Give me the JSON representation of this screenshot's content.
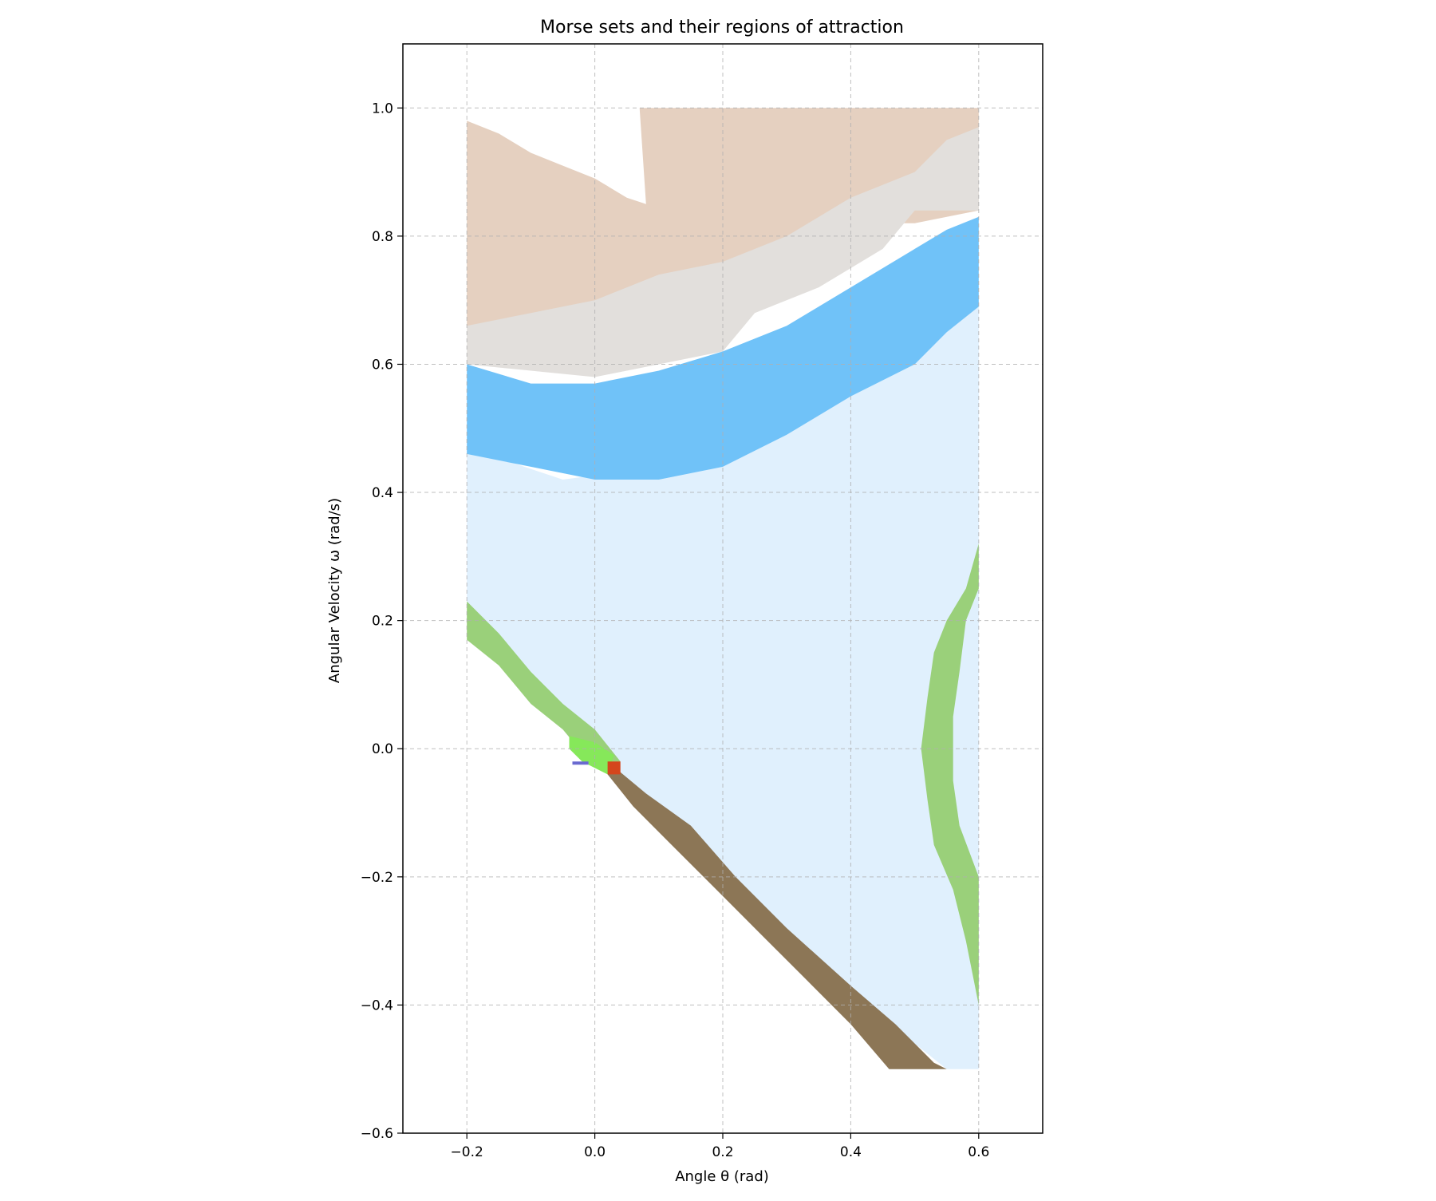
{
  "chart_data": {
    "type": "heatmap",
    "title": "Morse sets and their regions of attraction",
    "xlabel": "Angle θ (rad)",
    "ylabel": "Angular Velocity ω (rad/s)",
    "xlim": [
      -0.3,
      0.7
    ],
    "ylim": [
      -0.6,
      1.1
    ],
    "xticks": [
      -0.2,
      0.0,
      0.2,
      0.4,
      0.6
    ],
    "yticks": [
      -0.6,
      -0.4,
      -0.2,
      0.0,
      0.2,
      0.4,
      0.6,
      0.8,
      1.0
    ],
    "xtick_labels": [
      "−0.2",
      "0.0",
      "0.2",
      "0.4",
      "0.6"
    ],
    "ytick_labels": [
      "−0.6",
      "−0.4",
      "−0.2",
      "0.0",
      "0.2",
      "0.4",
      "0.6",
      "0.8",
      "1.0"
    ],
    "grid": true,
    "legend": "none",
    "regions": [
      {
        "color": "#e0f0fd",
        "polygon": [
          [
            -0.2,
            0.47
          ],
          [
            -0.05,
            0.42
          ],
          [
            0.1,
            0.44
          ],
          [
            0.35,
            0.52
          ],
          [
            0.6,
            0.7
          ],
          [
            0.6,
            -0.5
          ],
          [
            0.55,
            -0.5
          ],
          [
            0.3,
            -0.3
          ],
          [
            0.1,
            -0.12
          ],
          [
            -0.2,
            0.2
          ]
        ]
      },
      {
        "color": "#e5d0c0",
        "polygon": [
          [
            -0.2,
            0.98
          ],
          [
            -0.15,
            0.96
          ],
          [
            -0.1,
            0.93
          ],
          [
            -0.05,
            0.91
          ],
          [
            0.0,
            0.89
          ],
          [
            0.05,
            0.86
          ],
          [
            0.08,
            0.85
          ],
          [
            0.07,
            1.0
          ],
          [
            0.6,
            1.0
          ],
          [
            0.6,
            0.84
          ],
          [
            0.5,
            0.82
          ],
          [
            0.4,
            0.82
          ],
          [
            0.35,
            0.8
          ],
          [
            0.3,
            0.76
          ],
          [
            0.2,
            0.7
          ],
          [
            0.1,
            0.68
          ],
          [
            0.0,
            0.66
          ],
          [
            -0.1,
            0.66
          ],
          [
            -0.2,
            0.66
          ]
        ]
      },
      {
        "color": "#e2dfdc",
        "polygon": [
          [
            -0.2,
            0.66
          ],
          [
            -0.1,
            0.68
          ],
          [
            0.0,
            0.7
          ],
          [
            0.1,
            0.74
          ],
          [
            0.2,
            0.76
          ],
          [
            0.3,
            0.8
          ],
          [
            0.4,
            0.86
          ],
          [
            0.5,
            0.9
          ],
          [
            0.55,
            0.95
          ],
          [
            0.6,
            0.97
          ],
          [
            0.6,
            0.84
          ],
          [
            0.5,
            0.84
          ],
          [
            0.45,
            0.78
          ],
          [
            0.35,
            0.72
          ],
          [
            0.25,
            0.68
          ],
          [
            0.2,
            0.62
          ],
          [
            0.1,
            0.6
          ],
          [
            0.0,
            0.58
          ],
          [
            -0.2,
            0.6
          ]
        ]
      },
      {
        "color": "#70c2f8",
        "polygon": [
          [
            -0.2,
            0.6
          ],
          [
            -0.1,
            0.57
          ],
          [
            0.0,
            0.57
          ],
          [
            0.1,
            0.59
          ],
          [
            0.2,
            0.62
          ],
          [
            0.3,
            0.66
          ],
          [
            0.4,
            0.72
          ],
          [
            0.5,
            0.78
          ],
          [
            0.55,
            0.81
          ],
          [
            0.6,
            0.83
          ],
          [
            0.6,
            0.69
          ],
          [
            0.55,
            0.65
          ],
          [
            0.5,
            0.6
          ],
          [
            0.4,
            0.55
          ],
          [
            0.3,
            0.49
          ],
          [
            0.2,
            0.44
          ],
          [
            0.1,
            0.42
          ],
          [
            0.0,
            0.42
          ],
          [
            -0.1,
            0.44
          ],
          [
            -0.2,
            0.46
          ]
        ]
      },
      {
        "color": "#9ad07a",
        "polygon": [
          [
            -0.2,
            0.23
          ],
          [
            -0.15,
            0.18
          ],
          [
            -0.1,
            0.12
          ],
          [
            -0.05,
            0.07
          ],
          [
            0.0,
            0.03
          ],
          [
            0.04,
            -0.02
          ],
          [
            0.0,
            -0.03
          ],
          [
            -0.05,
            0.03
          ],
          [
            -0.1,
            0.07
          ],
          [
            -0.15,
            0.13
          ],
          [
            -0.2,
            0.17
          ]
        ]
      },
      {
        "color": "#9ad07a",
        "polygon": [
          [
            0.6,
            0.32
          ],
          [
            0.58,
            0.25
          ],
          [
            0.55,
            0.2
          ],
          [
            0.53,
            0.15
          ],
          [
            0.52,
            0.08
          ],
          [
            0.51,
            0.0
          ],
          [
            0.52,
            -0.08
          ],
          [
            0.53,
            -0.15
          ],
          [
            0.56,
            -0.22
          ],
          [
            0.58,
            -0.3
          ],
          [
            0.6,
            -0.4
          ],
          [
            0.6,
            -0.2
          ],
          [
            0.57,
            -0.12
          ],
          [
            0.56,
            -0.05
          ],
          [
            0.56,
            0.05
          ],
          [
            0.57,
            0.12
          ],
          [
            0.58,
            0.2
          ],
          [
            0.6,
            0.25
          ]
        ]
      },
      {
        "color": "#8c7656",
        "polygon": [
          [
            0.02,
            -0.02
          ],
          [
            0.08,
            -0.07
          ],
          [
            0.15,
            -0.12
          ],
          [
            0.22,
            -0.2
          ],
          [
            0.3,
            -0.28
          ],
          [
            0.4,
            -0.37
          ],
          [
            0.47,
            -0.43
          ],
          [
            0.53,
            -0.49
          ],
          [
            0.55,
            -0.5
          ],
          [
            0.46,
            -0.5
          ],
          [
            0.4,
            -0.43
          ],
          [
            0.33,
            -0.36
          ],
          [
            0.26,
            -0.29
          ],
          [
            0.19,
            -0.22
          ],
          [
            0.12,
            -0.15
          ],
          [
            0.06,
            -0.09
          ],
          [
            0.02,
            -0.04
          ]
        ]
      },
      {
        "color": "#86e85a",
        "polygon": [
          [
            -0.04,
            0.02
          ],
          [
            0.0,
            0.01
          ],
          [
            0.03,
            -0.01
          ],
          [
            0.02,
            -0.04
          ],
          [
            -0.02,
            -0.02
          ],
          [
            -0.04,
            0.0
          ]
        ]
      },
      {
        "color": "#d4461c",
        "polygon": [
          [
            0.02,
            -0.02
          ],
          [
            0.04,
            -0.02
          ],
          [
            0.04,
            -0.04
          ],
          [
            0.02,
            -0.04
          ]
        ]
      },
      {
        "color": "#6a6ad0",
        "polygon": [
          [
            -0.035,
            -0.02
          ],
          [
            -0.01,
            -0.02
          ],
          [
            -0.01,
            -0.025
          ],
          [
            -0.035,
            -0.025
          ]
        ]
      }
    ]
  }
}
